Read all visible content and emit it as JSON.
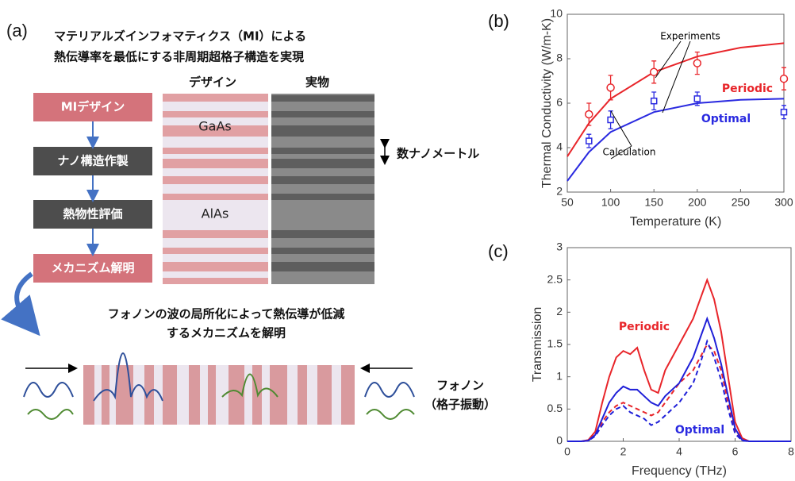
{
  "panel_a": {
    "label": "(a)",
    "title": [
      "マテリアルズインフォマティクス（MI）による",
      "熱伝導率を最低にする非周期超格子構造を実現"
    ],
    "steps": [
      "MIデザイン",
      "ナノ構造作製",
      "熱物性評価",
      "メカニズム解明"
    ],
    "columns": [
      "デザイン",
      "実物"
    ],
    "layers": [
      "GaAs",
      "AlAs"
    ],
    "scale": "数ナノメートル",
    "conclusion": [
      "フォノンの波の局所化によって熱伝導が低減",
      "するメカニズムを解明"
    ],
    "phonon": [
      "フォノン",
      "（格子振動）"
    ]
  },
  "chart_data": [
    {
      "type": "line",
      "label": "(b)",
      "xlabel": "Temperature (K)",
      "ylabel": "Thermal Conductivity (W/m-K)",
      "xlim": [
        50,
        300
      ],
      "xticks": [
        50,
        100,
        150,
        200,
        250,
        300
      ],
      "ylim": [
        2,
        10
      ],
      "yticks": [
        2,
        4,
        6,
        8,
        10
      ],
      "series": [
        {
          "color": "#e8252a",
          "x": [
            50,
            75,
            100,
            150,
            200,
            250,
            300
          ],
          "values": [
            3.6,
            5.1,
            6.2,
            7.4,
            8.1,
            8.5,
            8.7
          ]
        },
        {
          "color": "#2a2ae0",
          "x": [
            50,
            75,
            100,
            150,
            200,
            250,
            300
          ],
          "values": [
            2.5,
            3.8,
            4.7,
            5.6,
            6.0,
            6.15,
            6.2
          ]
        },
        {
          "color": "#e8252a",
          "marker": "circle",
          "x": [
            75,
            100,
            150,
            200,
            300
          ],
          "values": [
            5.5,
            6.7,
            7.4,
            7.8,
            7.1
          ],
          "errors": [
            0.5,
            0.55,
            0.5,
            0.5,
            0.5
          ]
        },
        {
          "color": "#2a2ae0",
          "marker": "square",
          "x": [
            75,
            100,
            150,
            200,
            300
          ],
          "values": [
            4.3,
            5.25,
            6.1,
            6.2,
            5.6
          ],
          "errors": [
            0.3,
            0.4,
            0.4,
            0.3,
            0.3
          ]
        }
      ],
      "annotations": [
        {
          "text": "Experiments",
          "color": "#000000"
        },
        {
          "text": "Calculation",
          "color": "#000000"
        },
        {
          "text": "Periodic",
          "color": "#e8252a"
        },
        {
          "text": "Optimal",
          "color": "#2a2ae0"
        }
      ]
    },
    {
      "type": "line",
      "label": "(c)",
      "xlabel": "Frequency (THz)",
      "ylabel": "Transmission",
      "xlim": [
        0,
        8
      ],
      "xticks": [
        0,
        2,
        4,
        6,
        8
      ],
      "ylim": [
        0,
        3
      ],
      "yticks": [
        0,
        0.5,
        1,
        1.5,
        2,
        2.5,
        3
      ],
      "x": [
        0,
        0.25,
        0.5,
        0.75,
        1,
        1.25,
        1.5,
        1.75,
        2,
        2.25,
        2.5,
        2.75,
        3,
        3.25,
        3.5,
        3.75,
        4,
        4.25,
        4.5,
        4.75,
        5,
        5.25,
        5.5,
        5.75,
        6,
        6.25,
        6.5,
        7,
        8
      ],
      "series": [
        {
          "color": "#e8252a",
          "dash": false,
          "values": [
            0,
            0,
            0,
            0.02,
            0.15,
            0.6,
            1.0,
            1.3,
            1.4,
            1.35,
            1.45,
            1.1,
            0.8,
            0.75,
            1.1,
            1.3,
            1.5,
            1.7,
            1.9,
            2.2,
            2.5,
            2.2,
            1.7,
            1.0,
            0.3,
            0.05,
            0,
            0,
            0
          ]
        },
        {
          "color": "#e8252a",
          "dash": true,
          "values": [
            0,
            0,
            0,
            0.01,
            0.1,
            0.3,
            0.45,
            0.55,
            0.6,
            0.55,
            0.5,
            0.45,
            0.4,
            0.45,
            0.6,
            0.75,
            0.9,
            1.0,
            1.1,
            1.3,
            1.5,
            1.4,
            1.1,
            0.6,
            0.15,
            0.02,
            0,
            0,
            0
          ]
        },
        {
          "color": "#1f1fd8",
          "dash": false,
          "values": [
            0,
            0,
            0,
            0.01,
            0.1,
            0.35,
            0.6,
            0.75,
            0.85,
            0.8,
            0.8,
            0.7,
            0.6,
            0.55,
            0.7,
            0.8,
            0.9,
            1.1,
            1.3,
            1.6,
            1.9,
            1.6,
            1.2,
            0.7,
            0.2,
            0.02,
            0,
            0,
            0
          ]
        },
        {
          "color": "#1f1fd8",
          "dash": true,
          "values": [
            0,
            0,
            0,
            0.01,
            0.08,
            0.25,
            0.4,
            0.5,
            0.55,
            0.45,
            0.4,
            0.35,
            0.25,
            0.3,
            0.4,
            0.5,
            0.6,
            0.75,
            0.9,
            1.2,
            1.55,
            1.3,
            0.95,
            0.5,
            0.12,
            0.01,
            0,
            0,
            0
          ]
        }
      ],
      "annotations": [
        {
          "text": "Periodic",
          "color": "#e8252a"
        },
        {
          "text": "Optimal",
          "color": "#2a2ae0"
        }
      ]
    }
  ]
}
